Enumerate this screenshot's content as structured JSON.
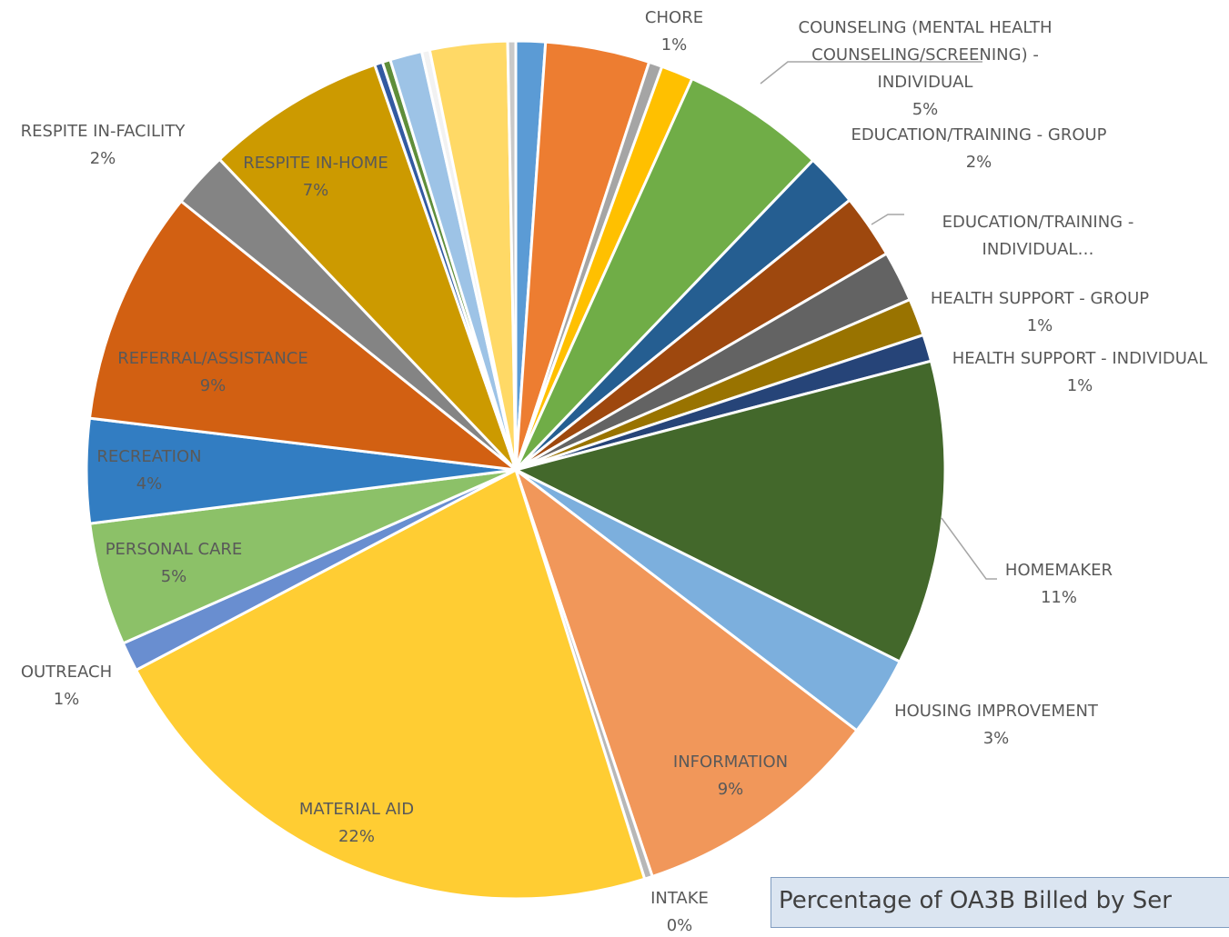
{
  "chart_data": {
    "type": "pie",
    "title": "Percentage of OA3B Billed by Ser",
    "categories": [
      null,
      null,
      null,
      "CHORE",
      "COUNSELING (MENTAL HEALTH COUNSELING/SCREENING) - INDIVIDUAL",
      "EDUCATION/TRAINING - GROUP",
      "EDUCATION/TRAINING - INDIVIDUAL…",
      null,
      "HEALTH SUPPORT - GROUP",
      "HEALTH SUPPORT - INDIVIDUAL",
      "HOMEMAKER",
      "HOUSING IMPROVEMENT",
      "INFORMATION",
      "INTAKE",
      "MATERIAL AID",
      "OUTREACH",
      "PERSONAL CARE",
      "RECREATION",
      "REFERRAL/ASSISTANCE",
      "RESPITE IN-FACILITY",
      "RESPITE IN-HOME",
      null,
      null,
      null,
      null,
      null,
      null
    ],
    "values": [
      1.1,
      3.9,
      0.5,
      1.2,
      5.4,
      2.0,
      2.4,
      1.9,
      1.4,
      1.0,
      11.4,
      3.0,
      9.4,
      0.3,
      22.0,
      1.1,
      4.6,
      3.9,
      8.8,
      2.1,
      6.75,
      0.3,
      0.3,
      1.2,
      0.3,
      2.9,
      0.3
    ],
    "value_labels": [
      null,
      null,
      null,
      "1%",
      "5%",
      "2%",
      null,
      null,
      "1%",
      "1%",
      "11%",
      "3%",
      "9%",
      "0%",
      "22%",
      "1%",
      "5%",
      "4%",
      "9%",
      "2%",
      "7%",
      null,
      null,
      null,
      null,
      null,
      null
    ],
    "colors": [
      "#5b9bd5",
      "#ed7d31",
      "#a5a5a5",
      "#ffc000",
      "#70ad47",
      "#255e91",
      "#9e480e",
      "#636363",
      "#997300",
      "#264478",
      "#43682b",
      "#7cafdd",
      "#f1975a",
      "#b7b7b7",
      "#ffcd33",
      "#698ed0",
      "#8cc168",
      "#327dc2",
      "#d26012",
      "#848484",
      "#cc9a00",
      "#335aa1",
      "#5f8e3a",
      "#9dc3e6",
      "#f2f2f2",
      "#ffd966",
      "#c9c9c9"
    ]
  }
}
